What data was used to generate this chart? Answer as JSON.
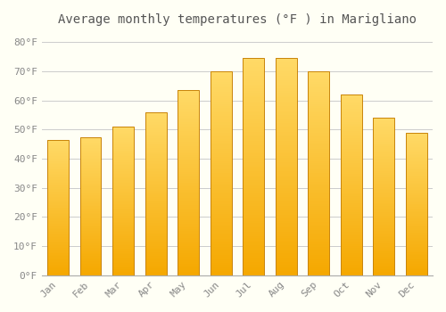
{
  "title": "Average monthly temperatures (°F ) in Marigliano",
  "months": [
    "Jan",
    "Feb",
    "Mar",
    "Apr",
    "May",
    "Jun",
    "Jul",
    "Aug",
    "Sep",
    "Oct",
    "Nov",
    "Dec"
  ],
  "values": [
    46.5,
    47.5,
    51.0,
    56.0,
    63.5,
    70.0,
    74.5,
    74.5,
    70.0,
    62.0,
    54.0,
    49.0
  ],
  "bar_color_bottom": "#F5A800",
  "bar_color_top": "#FFD966",
  "bar_edge_color": "#C8840A",
  "background_color": "#FFFFF5",
  "grid_color": "#CCCCCC",
  "text_color": "#888888",
  "title_color": "#555555",
  "ylim": [
    0,
    84
  ],
  "yticks": [
    0,
    10,
    20,
    30,
    40,
    50,
    60,
    70,
    80
  ],
  "ytick_labels": [
    "0°F",
    "10°F",
    "20°F",
    "30°F",
    "40°F",
    "50°F",
    "60°F",
    "70°F",
    "80°F"
  ],
  "title_fontsize": 10,
  "tick_fontsize": 8,
  "font_family": "monospace",
  "bar_width": 0.65,
  "n_gradient_steps": 100
}
